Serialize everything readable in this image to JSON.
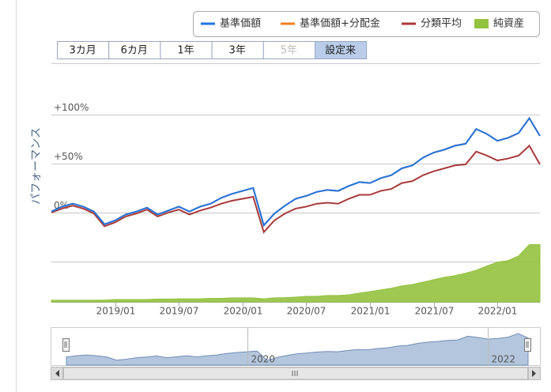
{
  "range_buttons": {
    "labels": [
      "3カ月",
      "6カ月",
      "1年",
      "3年",
      "5年",
      "設定来"
    ],
    "selected_index": 5,
    "disabled_index": [
      4
    ]
  },
  "chart_data": {
    "type": "line",
    "y_axis_label": "パフォーマンス",
    "x": [
      "2018/07",
      "2018/08",
      "2018/09",
      "2018/10",
      "2018/11",
      "2018/12",
      "2019/01",
      "2019/02",
      "2019/03",
      "2019/04",
      "2019/05",
      "2019/06",
      "2019/07",
      "2019/08",
      "2019/09",
      "2019/10",
      "2019/11",
      "2019/12",
      "2020/01",
      "2020/02",
      "2020/03",
      "2020/04",
      "2020/05",
      "2020/06",
      "2020/07",
      "2020/08",
      "2020/09",
      "2020/10",
      "2020/11",
      "2020/12",
      "2021/01",
      "2021/02",
      "2021/03",
      "2021/04",
      "2021/05",
      "2021/06",
      "2021/07",
      "2021/08",
      "2021/09",
      "2021/10",
      "2021/11",
      "2021/12",
      "2022/01",
      "2022/02",
      "2022/03",
      "2022/04",
      "2022/05"
    ],
    "xlim": [
      "2018/07",
      "2022/05"
    ],
    "xticks": [
      "2019/01",
      "2019/07",
      "2020/01",
      "2020/07",
      "2021/01",
      "2021/07",
      "2022/01"
    ],
    "ylim": [
      -91,
      152
    ],
    "yticks": [
      {
        "value": 100,
        "label": "+100%"
      },
      {
        "value": 50,
        "label": "+50%"
      },
      {
        "value": 0,
        "label": "0%"
      },
      {
        "value": -50,
        "label": null
      }
    ],
    "y2lim": [
      0,
      100
    ],
    "grid": true,
    "legend": "top-right",
    "series": [
      {
        "name": "基準価額",
        "color": "#1f74e0",
        "type": "line",
        "values": [
          1,
          6,
          9,
          6,
          1,
          -12,
          -8,
          -2,
          1,
          5,
          -2,
          2,
          6,
          1,
          6,
          9,
          15,
          19,
          22,
          25,
          -13,
          -1,
          7,
          14,
          17,
          21,
          23,
          22,
          27,
          31,
          30,
          35,
          38,
          45,
          48,
          56,
          61,
          64,
          68,
          70,
          85,
          80,
          73,
          76,
          81,
          96,
          78
        ]
      },
      {
        "name": "基準価額+分配金",
        "color": "#f07f1e",
        "type": "line",
        "values": [
          1,
          6,
          9,
          6,
          1,
          -12,
          -8,
          -2,
          1,
          5,
          -2,
          2,
          6,
          1,
          6,
          9,
          15,
          19,
          22,
          25,
          -13,
          -1,
          7,
          14,
          17,
          21,
          23,
          22,
          27,
          31,
          30,
          35,
          38,
          45,
          48,
          56,
          61,
          64,
          68,
          70,
          85,
          80,
          73,
          76,
          81,
          96,
          78
        ]
      },
      {
        "name": "分類平均",
        "color": "#a83a3a",
        "type": "line",
        "values": [
          0,
          4,
          7,
          4,
          -1,
          -14,
          -10,
          -4,
          -1,
          3,
          -4,
          0,
          3,
          -2,
          2,
          5,
          9,
          12,
          14,
          16,
          -20,
          -8,
          -1,
          4,
          6,
          9,
          10,
          9,
          14,
          18,
          18,
          22,
          24,
          30,
          32,
          38,
          42,
          45,
          48,
          49,
          62,
          58,
          53,
          55,
          58,
          68,
          49
        ]
      },
      {
        "name": "純資産",
        "color": "#93c23e",
        "type": "area",
        "axis": "y2",
        "values": [
          0.7,
          0.7,
          0.7,
          0.7,
          0.7,
          0.8,
          1,
          1,
          1,
          1,
          1.2,
          1.2,
          1.3,
          1.3,
          1.3,
          1.5,
          1.5,
          1.7,
          1.7,
          1.7,
          1.3,
          1.7,
          1.8,
          2,
          2.3,
          2.3,
          2.7,
          2.7,
          3,
          3.7,
          4.3,
          5,
          5.7,
          6.7,
          7.3,
          8.3,
          9.3,
          10.3,
          11,
          12,
          13.3,
          15,
          16.7,
          17.3,
          19.3,
          24,
          24
        ]
      }
    ],
    "navigator": {
      "xticks": [
        {
          "value": "2020/01",
          "label": "2020"
        },
        {
          "value": "2022/01",
          "label": "2022"
        }
      ]
    }
  }
}
